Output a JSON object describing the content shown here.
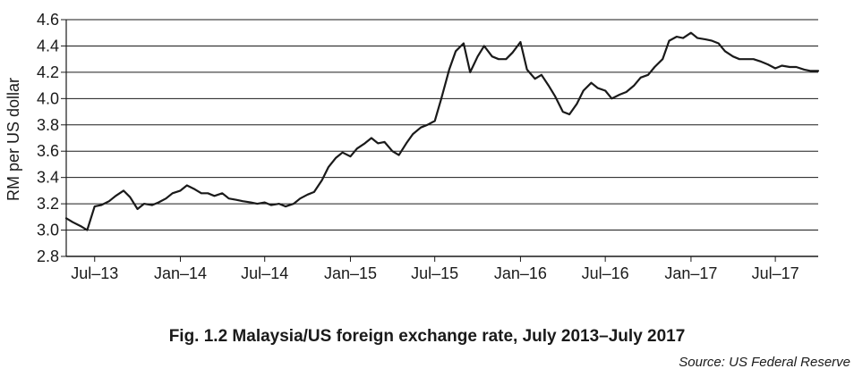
{
  "chart_data": {
    "type": "line",
    "title": "",
    "xlabel": "",
    "ylabel": "RM per US dollar",
    "ylim": [
      2.8,
      4.6
    ],
    "yticks": [
      2.8,
      3.0,
      3.2,
      3.4,
      3.6,
      3.8,
      4.0,
      4.2,
      4.4,
      4.6
    ],
    "ytick_labels": [
      "2.8",
      "3.0",
      "3.2",
      "3.4",
      "3.6",
      "3.8",
      "4.0",
      "4.2",
      "4.4",
      "4.6"
    ],
    "xlim": [
      "2013-05-01",
      "2017-10-01"
    ],
    "xticks": [
      "2013-07-01",
      "2014-01-01",
      "2014-07-01",
      "2015-01-01",
      "2015-07-01",
      "2016-01-01",
      "2016-07-01",
      "2017-01-01",
      "2017-07-01"
    ],
    "xtick_labels": [
      "Jul–13",
      "Jan–14",
      "Jul–14",
      "Jan–15",
      "Jul–15",
      "Jan–16",
      "Jul–16",
      "Jan–17",
      "Jul–17"
    ],
    "grid": "horizontal",
    "line_color": "#1a1a1a",
    "series": [
      {
        "x": [
          "2013-05-01",
          "2013-05-15",
          "2013-06-01",
          "2013-06-15",
          "2013-07-01",
          "2013-07-15",
          "2013-08-01",
          "2013-08-15",
          "2013-09-01",
          "2013-09-15",
          "2013-10-01",
          "2013-10-15",
          "2013-11-01",
          "2013-11-15",
          "2013-12-01",
          "2013-12-15",
          "2014-01-01",
          "2014-01-15",
          "2014-02-01",
          "2014-02-15",
          "2014-03-01",
          "2014-03-15",
          "2014-04-01",
          "2014-04-15",
          "2014-05-01",
          "2014-05-15",
          "2014-06-01",
          "2014-06-15",
          "2014-07-01",
          "2014-07-15",
          "2014-08-01",
          "2014-08-15",
          "2014-09-01",
          "2014-09-15",
          "2014-10-01",
          "2014-10-15",
          "2014-11-01",
          "2014-11-15",
          "2014-12-01",
          "2014-12-15",
          "2015-01-01",
          "2015-01-15",
          "2015-02-01",
          "2015-02-15",
          "2015-03-01",
          "2015-03-15",
          "2015-04-01",
          "2015-04-15",
          "2015-05-01",
          "2015-05-15",
          "2015-06-01",
          "2015-06-15",
          "2015-07-01",
          "2015-07-15",
          "2015-08-01",
          "2015-08-15",
          "2015-09-01",
          "2015-09-15",
          "2015-10-01",
          "2015-10-15",
          "2015-11-01",
          "2015-11-15",
          "2015-12-01",
          "2015-12-15",
          "2016-01-01",
          "2016-01-15",
          "2016-02-01",
          "2016-02-15",
          "2016-03-01",
          "2016-03-15",
          "2016-04-01",
          "2016-04-15",
          "2016-05-01",
          "2016-05-15",
          "2016-06-01",
          "2016-06-15",
          "2016-07-01",
          "2016-07-15",
          "2016-08-01",
          "2016-08-15",
          "2016-09-01",
          "2016-09-15",
          "2016-10-01",
          "2016-10-15",
          "2016-11-01",
          "2016-11-15",
          "2016-12-01",
          "2016-12-15",
          "2017-01-01",
          "2017-01-15",
          "2017-02-01",
          "2017-02-15",
          "2017-03-01",
          "2017-03-15",
          "2017-04-01",
          "2017-04-15",
          "2017-05-01",
          "2017-05-15",
          "2017-06-01",
          "2017-06-15",
          "2017-07-01",
          "2017-07-15",
          "2017-08-01",
          "2017-08-15",
          "2017-09-01",
          "2017-09-15",
          "2017-10-01"
        ],
        "y": [
          3.09,
          3.06,
          3.03,
          3.0,
          3.18,
          3.19,
          3.22,
          3.26,
          3.3,
          3.25,
          3.16,
          3.2,
          3.19,
          3.21,
          3.24,
          3.28,
          3.3,
          3.34,
          3.31,
          3.28,
          3.28,
          3.26,
          3.28,
          3.24,
          3.23,
          3.22,
          3.21,
          3.2,
          3.21,
          3.19,
          3.2,
          3.18,
          3.2,
          3.24,
          3.27,
          3.29,
          3.38,
          3.48,
          3.55,
          3.59,
          3.56,
          3.62,
          3.66,
          3.7,
          3.66,
          3.67,
          3.6,
          3.57,
          3.66,
          3.73,
          3.78,
          3.8,
          3.83,
          4.0,
          4.22,
          4.36,
          4.42,
          4.2,
          4.32,
          4.4,
          4.32,
          4.3,
          4.3,
          4.35,
          4.43,
          4.22,
          4.15,
          4.18,
          4.1,
          4.02,
          3.9,
          3.88,
          3.96,
          4.06,
          4.12,
          4.08,
          4.06,
          4.0,
          4.03,
          4.05,
          4.1,
          4.16,
          4.18,
          4.24,
          4.3,
          4.44,
          4.47,
          4.46,
          4.5,
          4.46,
          4.45,
          4.44,
          4.42,
          4.36,
          4.32,
          4.3,
          4.3,
          4.3,
          4.28,
          4.26,
          4.23,
          4.25,
          4.24,
          4.24,
          4.22,
          4.21,
          4.21
        ]
      }
    ]
  },
  "caption": "Fig. 1.2 Malaysia/US foreign exchange rate, July 2013–July 2017",
  "source": "Source: US Federal Reserve"
}
